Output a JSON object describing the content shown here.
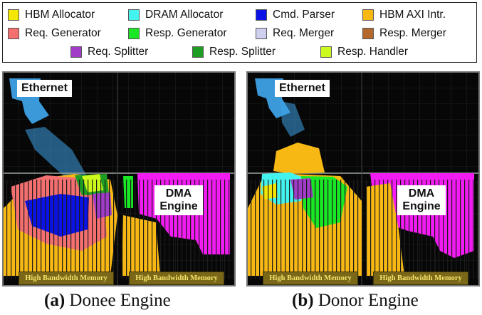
{
  "colors": {
    "hbm_allocator": "#f3e600",
    "dram_allocator": "#43f3ee",
    "cmd_parser": "#0a12e6",
    "hbm_axi_intr": "#f7b814",
    "req_generator": "#f46f70",
    "resp_generator": "#19e624",
    "req_merger": "#cfcff0",
    "resp_merger": "#b5682c",
    "req_splitter": "#a03cc8",
    "resp_splitter": "#1d9e22",
    "resp_handler": "#cbfa1c",
    "dma_engine": "#f21cf2",
    "ethernet": "#3ea1e6"
  },
  "legend": {
    "items": [
      {
        "label": "HBM Allocator",
        "color_key": "hbm_allocator"
      },
      {
        "label": "DRAM Allocator",
        "color_key": "dram_allocator"
      },
      {
        "label": "Cmd. Parser",
        "color_key": "cmd_parser"
      },
      {
        "label": "HBM AXI Intr.",
        "color_key": "hbm_axi_intr"
      },
      {
        "label": "Req. Generator",
        "color_key": "req_generator"
      },
      {
        "label": "Resp. Generator",
        "color_key": "resp_generator"
      },
      {
        "label": "Req. Merger",
        "color_key": "req_merger"
      },
      {
        "label": "Resp. Merger",
        "color_key": "resp_merger"
      },
      {
        "label": "Req. Splitter",
        "color_key": "req_splitter"
      },
      {
        "label": "Resp. Splitter",
        "color_key": "resp_splitter"
      },
      {
        "label": "Resp. Handler",
        "color_key": "resp_handler"
      }
    ]
  },
  "panels": {
    "a": {
      "ethernet_label": "Ethernet",
      "dma_label_line1": "DMA",
      "dma_label_line2": "Engine",
      "hbm_label_left": "High Bandwidth Memory",
      "hbm_label_right": "High Bandwidth Memory",
      "caption_letter": "(a)",
      "caption_text": "Donee Engine"
    },
    "b": {
      "ethernet_label": "Ethernet",
      "dma_label_line1": "DMA",
      "dma_label_line2": "Engine",
      "hbm_label_left": "High Bandwidth Memory",
      "hbm_label_right": "High Bandwidth Memory",
      "caption_letter": "(b)",
      "caption_text": "Donor Engine"
    }
  }
}
